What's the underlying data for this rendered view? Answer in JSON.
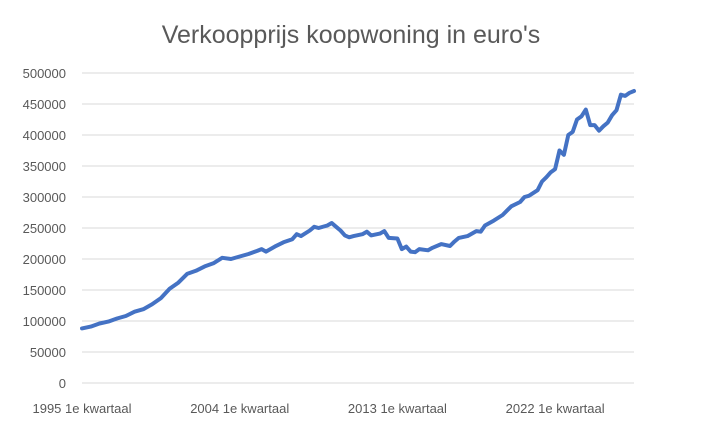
{
  "chart_data": {
    "type": "line",
    "title": "Verkoopprijs koopwoning in euro's",
    "xlabel": "",
    "ylabel": "",
    "ylim": [
      0,
      500000
    ],
    "y_ticks": [
      "0",
      "50000",
      "100000",
      "150000",
      "200000",
      "250000",
      "300000",
      "350000",
      "400000",
      "450000",
      "500000"
    ],
    "x_tick_labels": [
      "1995 1e kwartaal",
      "2004 1e kwartaal",
      "2013 1e kwartaal",
      "2022 1e kwartaal"
    ],
    "grid": true,
    "legend": "none",
    "line_color": "#4472c4",
    "series": [
      {
        "name": "Verkoopprijs koopwoning",
        "points": [
          {
            "x": 1995.0,
            "y": 88000
          },
          {
            "x": 1995.5,
            "y": 91000
          },
          {
            "x": 1996.0,
            "y": 96000
          },
          {
            "x": 1996.5,
            "y": 99000
          },
          {
            "x": 1997.0,
            "y": 104000
          },
          {
            "x": 1997.5,
            "y": 108000
          },
          {
            "x": 1998.0,
            "y": 115000
          },
          {
            "x": 1998.5,
            "y": 119000
          },
          {
            "x": 1999.0,
            "y": 127000
          },
          {
            "x": 1999.5,
            "y": 137000
          },
          {
            "x": 2000.0,
            "y": 152000
          },
          {
            "x": 2000.5,
            "y": 162000
          },
          {
            "x": 2001.0,
            "y": 176000
          },
          {
            "x": 2001.5,
            "y": 181000
          },
          {
            "x": 2002.0,
            "y": 188000
          },
          {
            "x": 2002.5,
            "y": 193000
          },
          {
            "x": 2003.0,
            "y": 202000
          },
          {
            "x": 2003.5,
            "y": 200000
          },
          {
            "x": 2004.0,
            "y": 204000
          },
          {
            "x": 2004.5,
            "y": 208000
          },
          {
            "x": 2005.0,
            "y": 213000
          },
          {
            "x": 2005.25,
            "y": 216000
          },
          {
            "x": 2005.5,
            "y": 212000
          },
          {
            "x": 2006.0,
            "y": 220000
          },
          {
            "x": 2006.5,
            "y": 227000
          },
          {
            "x": 2007.0,
            "y": 232000
          },
          {
            "x": 2007.25,
            "y": 240000
          },
          {
            "x": 2007.5,
            "y": 237000
          },
          {
            "x": 2008.0,
            "y": 246000
          },
          {
            "x": 2008.25,
            "y": 252000
          },
          {
            "x": 2008.5,
            "y": 250000
          },
          {
            "x": 2009.0,
            "y": 254000
          },
          {
            "x": 2009.25,
            "y": 258000
          },
          {
            "x": 2009.5,
            "y": 252000
          },
          {
            "x": 2009.75,
            "y": 246000
          },
          {
            "x": 2010.0,
            "y": 238000
          },
          {
            "x": 2010.25,
            "y": 235000
          },
          {
            "x": 2010.5,
            "y": 237000
          },
          {
            "x": 2011.0,
            "y": 240000
          },
          {
            "x": 2011.25,
            "y": 244000
          },
          {
            "x": 2011.5,
            "y": 238000
          },
          {
            "x": 2012.0,
            "y": 241000
          },
          {
            "x": 2012.25,
            "y": 245000
          },
          {
            "x": 2012.5,
            "y": 234000
          },
          {
            "x": 2013.0,
            "y": 233000
          },
          {
            "x": 2013.25,
            "y": 216000
          },
          {
            "x": 2013.5,
            "y": 220000
          },
          {
            "x": 2013.75,
            "y": 212000
          },
          {
            "x": 2014.0,
            "y": 211000
          },
          {
            "x": 2014.25,
            "y": 216000
          },
          {
            "x": 2014.75,
            "y": 214000
          },
          {
            "x": 2015.0,
            "y": 218000
          },
          {
            "x": 2015.5,
            "y": 224000
          },
          {
            "x": 2016.0,
            "y": 221000
          },
          {
            "x": 2016.25,
            "y": 228000
          },
          {
            "x": 2016.5,
            "y": 234000
          },
          {
            "x": 2017.0,
            "y": 237000
          },
          {
            "x": 2017.5,
            "y": 245000
          },
          {
            "x": 2017.75,
            "y": 244000
          },
          {
            "x": 2018.0,
            "y": 254000
          },
          {
            "x": 2018.5,
            "y": 262000
          },
          {
            "x": 2019.0,
            "y": 271000
          },
          {
            "x": 2019.25,
            "y": 278000
          },
          {
            "x": 2019.5,
            "y": 285000
          },
          {
            "x": 2020.0,
            "y": 292000
          },
          {
            "x": 2020.25,
            "y": 300000
          },
          {
            "x": 2020.5,
            "y": 302000
          },
          {
            "x": 2021.0,
            "y": 311000
          },
          {
            "x": 2021.25,
            "y": 325000
          },
          {
            "x": 2021.5,
            "y": 332000
          },
          {
            "x": 2021.75,
            "y": 340000
          },
          {
            "x": 2022.0,
            "y": 345000
          },
          {
            "x": 2022.25,
            "y": 375000
          },
          {
            "x": 2022.5,
            "y": 368000
          },
          {
            "x": 2022.75,
            "y": 400000
          },
          {
            "x": 2023.0,
            "y": 405000
          },
          {
            "x": 2023.25,
            "y": 425000
          },
          {
            "x": 2023.5,
            "y": 430000
          },
          {
            "x": 2023.75,
            "y": 441000
          },
          {
            "x": 2024.0,
            "y": 416000
          },
          {
            "x": 2024.25,
            "y": 416000
          },
          {
            "x": 2024.5,
            "y": 407000
          },
          {
            "x": 2024.75,
            "y": 414000
          },
          {
            "x": 2025.0,
            "y": 420000
          },
          {
            "x": 2025.25,
            "y": 432000
          },
          {
            "x": 2025.5,
            "y": 440000
          },
          {
            "x": 2025.75,
            "y": 465000
          },
          {
            "x": 2026.0,
            "y": 463000
          },
          {
            "x": 2026.25,
            "y": 468000
          },
          {
            "x": 2026.5,
            "y": 471000
          }
        ]
      }
    ]
  }
}
